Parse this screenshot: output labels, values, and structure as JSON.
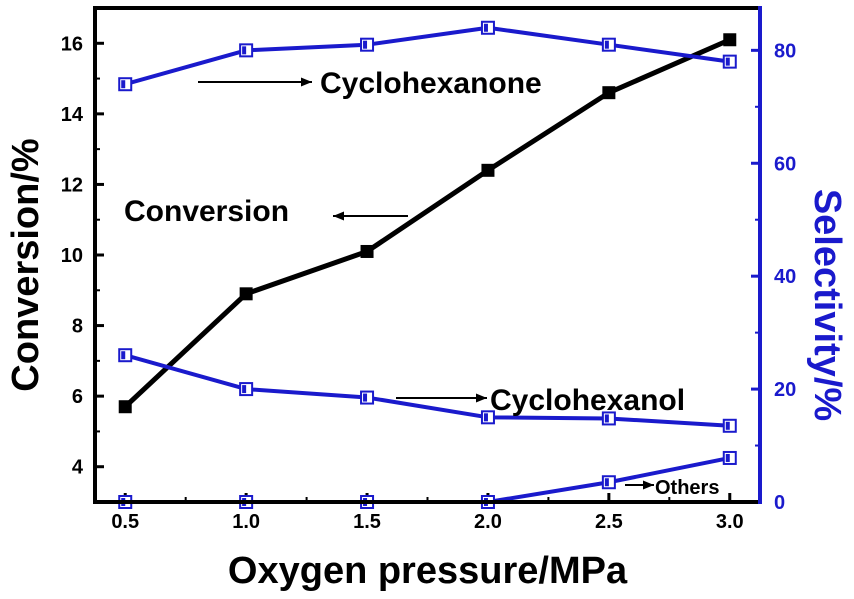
{
  "chart_data": {
    "type": "line",
    "x": [
      0.5,
      1.0,
      1.5,
      2.0,
      2.5,
      3.0
    ],
    "xlabel": "Oxygen pressure/MPa",
    "ylabel_left": "Conversion/%",
    "ylabel_right": "Selectivity/%",
    "xlim": [
      0.375,
      3.125
    ],
    "ylim_left": [
      3.0,
      17.0
    ],
    "ylim_right": [
      0,
      87.5
    ],
    "x_ticks": [
      "0.5",
      "1.0",
      "1.5",
      "2.0",
      "2.5",
      "3.0"
    ],
    "y_left_ticks": [
      "4",
      "6",
      "8",
      "10",
      "12",
      "14",
      "16"
    ],
    "y_right_ticks": [
      "0",
      "20",
      "40",
      "60",
      "80"
    ],
    "grid": false,
    "series": [
      {
        "name": "Conversion",
        "axis": "left",
        "marker": "filled-square",
        "color": "#000000",
        "values": [
          5.7,
          8.9,
          10.1,
          12.4,
          14.6,
          16.1
        ]
      },
      {
        "name": "Cyclohexanone",
        "axis": "right",
        "marker": "open-square",
        "color": "#1a1acc",
        "values": [
          74,
          80,
          81,
          84,
          81,
          78
        ]
      },
      {
        "name": "Cyclohexanol",
        "axis": "right",
        "marker": "open-square",
        "color": "#1a1acc",
        "values": [
          26,
          20,
          18.5,
          15,
          14.8,
          13.5
        ]
      },
      {
        "name": "Others",
        "axis": "right",
        "marker": "open-square",
        "color": "#1a1acc",
        "values": [
          0,
          0,
          0,
          0,
          3.5,
          7.8
        ]
      }
    ],
    "annotations": [
      {
        "text": "Cyclohexanone",
        "target": "Cyclohexanone"
      },
      {
        "text": "Conversion",
        "target": "Conversion"
      },
      {
        "text": "Cyclohexanol",
        "target": "Cyclohexanol"
      },
      {
        "text": "Others",
        "target": "Others"
      }
    ]
  }
}
